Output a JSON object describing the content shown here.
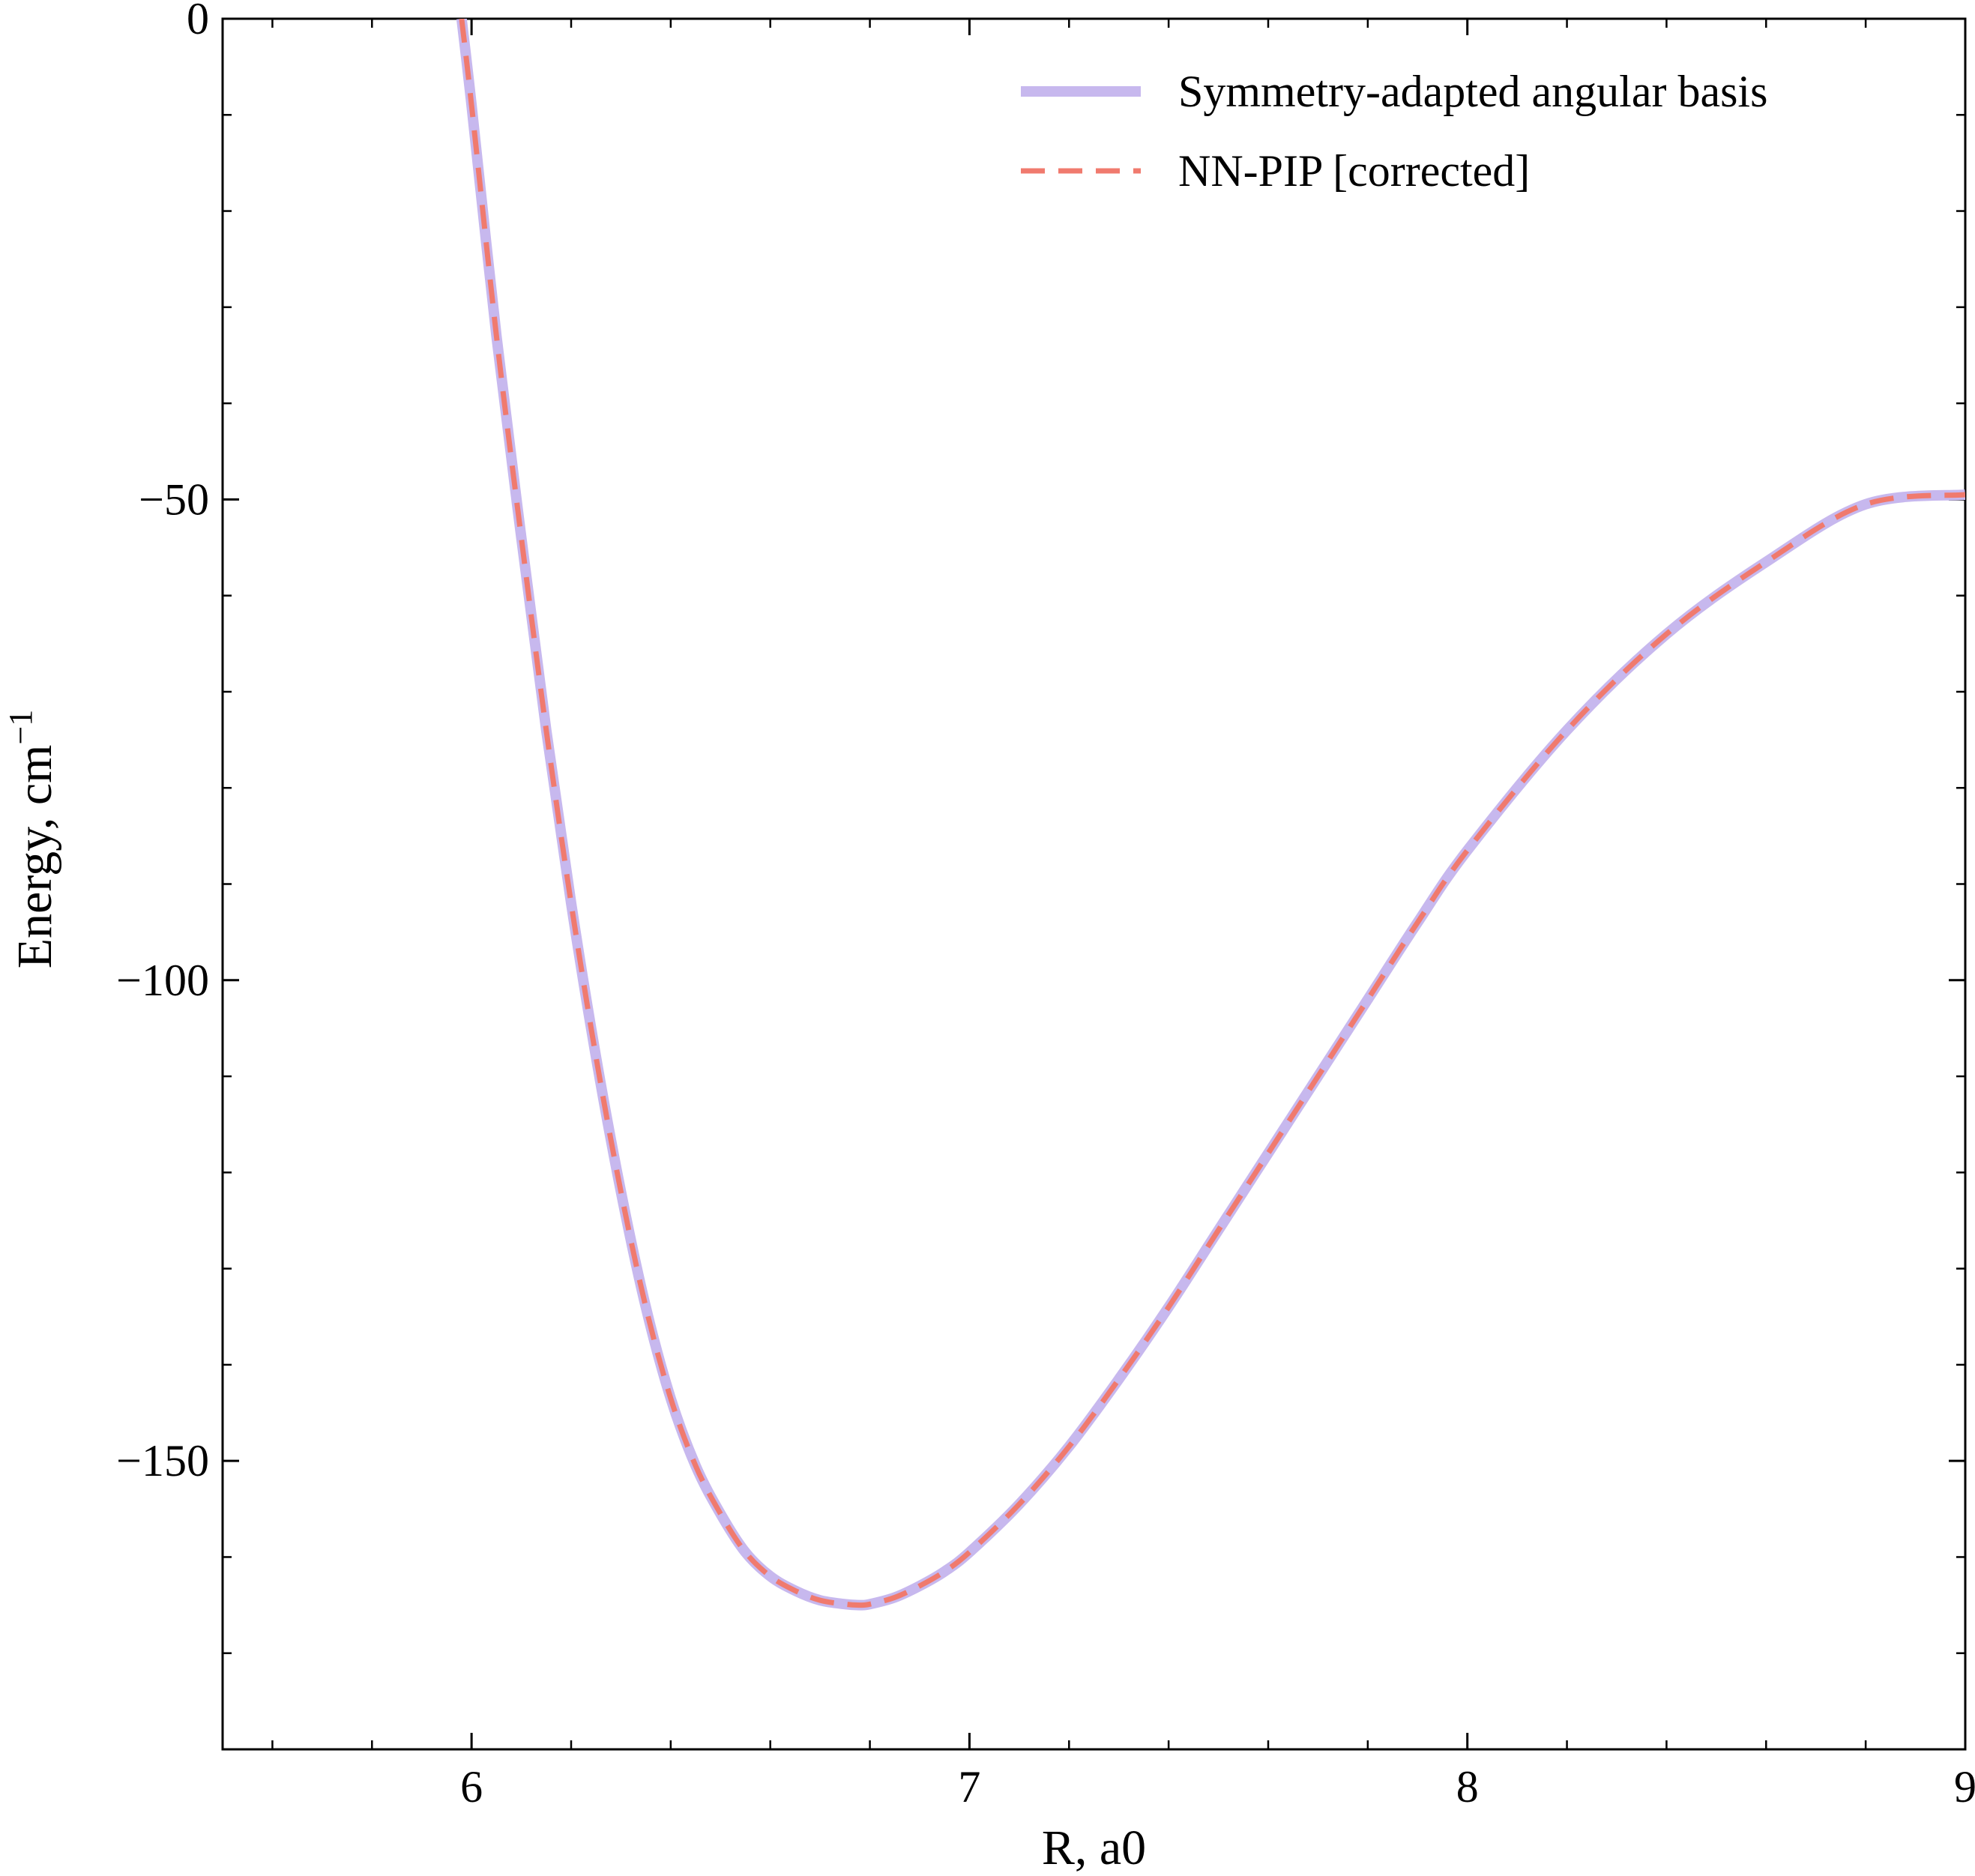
{
  "chart_data": {
    "type": "line",
    "title": "",
    "xlabel": "R, a0",
    "ylabel": "Energy, cm",
    "ylabel_superscript": "−1",
    "xlim": [
      5.5,
      9.0
    ],
    "ylim": [
      -180,
      0
    ],
    "x_major_ticks": [
      6,
      7,
      8,
      9
    ],
    "x_tick_labels": [
      "6",
      "7",
      "8",
      "9"
    ],
    "x_minor_step": 0.2,
    "y_major_ticks": [
      0,
      -50,
      -100,
      -150
    ],
    "y_tick_labels": [
      "0",
      "−50",
      "−100",
      "−150"
    ],
    "y_minor_step": 10,
    "grid": false,
    "legend_position": "top-right",
    "series": [
      {
        "name": "Symmetry-adapted angular basis",
        "color": "#c7b8ee",
        "style": "solid",
        "x": [
          5.98,
          6.0,
          6.05,
          6.1,
          6.15,
          6.2,
          6.25,
          6.3,
          6.35,
          6.4,
          6.45,
          6.5,
          6.55,
          6.6,
          6.65,
          6.7,
          6.75,
          6.78,
          6.8,
          6.85,
          6.9,
          6.95,
          7.0,
          7.1,
          7.2,
          7.3,
          7.4,
          7.5,
          7.6,
          7.7,
          7.8,
          7.9,
          8.0,
          8.2,
          8.4,
          8.6,
          8.8,
          9.0
        ],
        "y": [
          0,
          -9,
          -33,
          -54,
          -74,
          -92,
          -108,
          -122,
          -134,
          -143.5,
          -150.5,
          -155.5,
          -159.5,
          -162,
          -163.5,
          -164.5,
          -164.9,
          -165,
          -164.9,
          -164.2,
          -163,
          -161.5,
          -159.5,
          -154.5,
          -148.5,
          -141.5,
          -134,
          -126,
          -118,
          -110,
          -102,
          -94,
          -86.5,
          -74,
          -64,
          -56.5,
          -50.5,
          -49.5
        ]
      },
      {
        "name": "NN-PIP [corrected]",
        "color": "#f07a6e",
        "style": "dashed",
        "x": [
          5.98,
          6.0,
          6.05,
          6.1,
          6.15,
          6.2,
          6.25,
          6.3,
          6.35,
          6.4,
          6.45,
          6.5,
          6.55,
          6.6,
          6.65,
          6.7,
          6.75,
          6.78,
          6.8,
          6.85,
          6.9,
          6.95,
          7.0,
          7.1,
          7.2,
          7.3,
          7.4,
          7.5,
          7.6,
          7.7,
          7.8,
          7.9,
          8.0,
          8.2,
          8.4,
          8.6,
          8.8,
          9.0
        ],
        "y": [
          0,
          -9,
          -33,
          -54,
          -74,
          -92,
          -108,
          -122,
          -134,
          -143.5,
          -150.5,
          -155.5,
          -159.5,
          -162,
          -163.5,
          -164.5,
          -164.9,
          -165,
          -164.9,
          -164.2,
          -163,
          -161.5,
          -159.5,
          -154.5,
          -148.5,
          -141.5,
          -134,
          -126,
          -118,
          -110,
          -102,
          -94,
          -86.5,
          -74,
          -64,
          -56.5,
          -50.5,
          -49.5
        ]
      }
    ]
  }
}
